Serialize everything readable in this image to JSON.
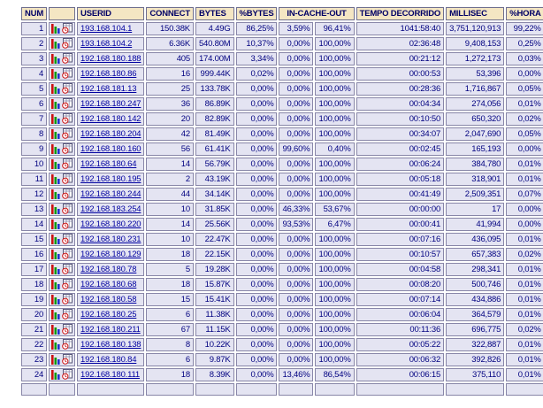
{
  "colors": {
    "header_bg": "#f4e6c3",
    "header_text": "#000066",
    "header_border": "#6f6f8f",
    "cell_bg": "#e4e4f2",
    "cell_text": "#000080",
    "cell_border": "#8886a8",
    "link_color": "#0000a0",
    "page_bg": "#ffffff"
  },
  "table": {
    "columns": [
      {
        "key": "num",
        "label": "NUM"
      },
      {
        "key": "icons",
        "label": ""
      },
      {
        "key": "userid",
        "label": "USERID"
      },
      {
        "key": "connect",
        "label": "CONNECT"
      },
      {
        "key": "bytes",
        "label": "BYTES"
      },
      {
        "key": "pbytes",
        "label": "%BYTES"
      },
      {
        "key": "in_cache_out",
        "label": "IN-CACHE-OUT",
        "colspan": 2
      },
      {
        "key": "tempo",
        "label": "TEMPO DECORRIDO"
      },
      {
        "key": "millisec",
        "label": "MILLISEC"
      },
      {
        "key": "phora",
        "label": "%HORA"
      }
    ],
    "row_icons": [
      "bar-graph-icon",
      "datetime-icon"
    ],
    "partial_row_visible": true,
    "rows": [
      {
        "num": "1",
        "userid": "193.168.104.1",
        "connect": "150.38K",
        "bytes": "4.49G",
        "pbytes": "86,25%",
        "incache": "3,59%",
        "outcache": "96,41%",
        "tempo": "1041:58:40",
        "millisec": "3,751,120,913",
        "phora": "99,22%"
      },
      {
        "num": "2",
        "userid": "193.168.104.2",
        "connect": "6.36K",
        "bytes": "540.80M",
        "pbytes": "10,37%",
        "incache": "0,00%",
        "outcache": "100,00%",
        "tempo": "02:36:48",
        "millisec": "9,408,153",
        "phora": "0,25%"
      },
      {
        "num": "3",
        "userid": "192.168.180.188",
        "connect": "405",
        "bytes": "174.00M",
        "pbytes": "3,34%",
        "incache": "0,00%",
        "outcache": "100,00%",
        "tempo": "00:21:12",
        "millisec": "1,272,173",
        "phora": "0,03%"
      },
      {
        "num": "4",
        "userid": "192.168.180.86",
        "connect": "16",
        "bytes": "999.44K",
        "pbytes": "0,02%",
        "incache": "0,00%",
        "outcache": "100,00%",
        "tempo": "00:00:53",
        "millisec": "53,396",
        "phora": "0,00%"
      },
      {
        "num": "5",
        "userid": "192.168.181.13",
        "connect": "25",
        "bytes": "133.78K",
        "pbytes": "0,00%",
        "incache": "0,00%",
        "outcache": "100,00%",
        "tempo": "00:28:36",
        "millisec": "1,716,867",
        "phora": "0,05%"
      },
      {
        "num": "6",
        "userid": "192.168.180.247",
        "connect": "36",
        "bytes": "86.89K",
        "pbytes": "0,00%",
        "incache": "0,00%",
        "outcache": "100,00%",
        "tempo": "00:04:34",
        "millisec": "274,056",
        "phora": "0,01%"
      },
      {
        "num": "7",
        "userid": "192.168.180.142",
        "connect": "20",
        "bytes": "82.89K",
        "pbytes": "0,00%",
        "incache": "0,00%",
        "outcache": "100,00%",
        "tempo": "00:10:50",
        "millisec": "650,320",
        "phora": "0,02%"
      },
      {
        "num": "8",
        "userid": "192.168.180.204",
        "connect": "42",
        "bytes": "81.49K",
        "pbytes": "0,00%",
        "incache": "0,00%",
        "outcache": "100,00%",
        "tempo": "00:34:07",
        "millisec": "2,047,690",
        "phora": "0,05%"
      },
      {
        "num": "9",
        "userid": "192.168.180.160",
        "connect": "56",
        "bytes": "61.41K",
        "pbytes": "0,00%",
        "incache": "99,60%",
        "outcache": "0,40%",
        "tempo": "00:02:45",
        "millisec": "165,193",
        "phora": "0,00%"
      },
      {
        "num": "10",
        "userid": "192.168.180.64",
        "connect": "14",
        "bytes": "56.79K",
        "pbytes": "0,00%",
        "incache": "0,00%",
        "outcache": "100,00%",
        "tempo": "00:06:24",
        "millisec": "384,780",
        "phora": "0,01%"
      },
      {
        "num": "11",
        "userid": "192.168.180.195",
        "connect": "2",
        "bytes": "43.19K",
        "pbytes": "0,00%",
        "incache": "0,00%",
        "outcache": "100,00%",
        "tempo": "00:05:18",
        "millisec": "318,901",
        "phora": "0,01%"
      },
      {
        "num": "12",
        "userid": "192.168.180.244",
        "connect": "44",
        "bytes": "34.14K",
        "pbytes": "0,00%",
        "incache": "0,00%",
        "outcache": "100,00%",
        "tempo": "00:41:49",
        "millisec": "2,509,351",
        "phora": "0,07%"
      },
      {
        "num": "13",
        "userid": "192.168.183.254",
        "connect": "10",
        "bytes": "31.85K",
        "pbytes": "0,00%",
        "incache": "46,33%",
        "outcache": "53,67%",
        "tempo": "00:00:00",
        "millisec": "17",
        "phora": "0,00%"
      },
      {
        "num": "14",
        "userid": "192.168.180.220",
        "connect": "14",
        "bytes": "25.56K",
        "pbytes": "0,00%",
        "incache": "93,53%",
        "outcache": "6,47%",
        "tempo": "00:00:41",
        "millisec": "41,994",
        "phora": "0,00%"
      },
      {
        "num": "15",
        "userid": "192.168.180.231",
        "connect": "10",
        "bytes": "22.47K",
        "pbytes": "0,00%",
        "incache": "0,00%",
        "outcache": "100,00%",
        "tempo": "00:07:16",
        "millisec": "436,095",
        "phora": "0,01%"
      },
      {
        "num": "16",
        "userid": "192.168.180.129",
        "connect": "18",
        "bytes": "22.15K",
        "pbytes": "0,00%",
        "incache": "0,00%",
        "outcache": "100,00%",
        "tempo": "00:10:57",
        "millisec": "657,383",
        "phora": "0,02%"
      },
      {
        "num": "17",
        "userid": "192.168.180.78",
        "connect": "5",
        "bytes": "19.28K",
        "pbytes": "0,00%",
        "incache": "0,00%",
        "outcache": "100,00%",
        "tempo": "00:04:58",
        "millisec": "298,341",
        "phora": "0,01%"
      },
      {
        "num": "18",
        "userid": "192.168.180.68",
        "connect": "18",
        "bytes": "15.87K",
        "pbytes": "0,00%",
        "incache": "0,00%",
        "outcache": "100,00%",
        "tempo": "00:08:20",
        "millisec": "500,746",
        "phora": "0,01%"
      },
      {
        "num": "19",
        "userid": "192.168.180.58",
        "connect": "15",
        "bytes": "15.41K",
        "pbytes": "0,00%",
        "incache": "0,00%",
        "outcache": "100,00%",
        "tempo": "00:07:14",
        "millisec": "434,886",
        "phora": "0,01%"
      },
      {
        "num": "20",
        "userid": "192.168.180.25",
        "connect": "6",
        "bytes": "11.38K",
        "pbytes": "0,00%",
        "incache": "0,00%",
        "outcache": "100,00%",
        "tempo": "00:06:04",
        "millisec": "364,579",
        "phora": "0,01%"
      },
      {
        "num": "21",
        "userid": "192.168.180.211",
        "connect": "67",
        "bytes": "11.15K",
        "pbytes": "0,00%",
        "incache": "0,00%",
        "outcache": "100,00%",
        "tempo": "00:11:36",
        "millisec": "696,775",
        "phora": "0,02%"
      },
      {
        "num": "22",
        "userid": "192.168.180.138",
        "connect": "8",
        "bytes": "10.22K",
        "pbytes": "0,00%",
        "incache": "0,00%",
        "outcache": "100,00%",
        "tempo": "00:05:22",
        "millisec": "322,887",
        "phora": "0,01%"
      },
      {
        "num": "23",
        "userid": "192.168.180.84",
        "connect": "6",
        "bytes": "9.87K",
        "pbytes": "0,00%",
        "incache": "0,00%",
        "outcache": "100,00%",
        "tempo": "00:06:32",
        "millisec": "392,826",
        "phora": "0,01%"
      },
      {
        "num": "24",
        "userid": "192.168.180.111",
        "connect": "18",
        "bytes": "8.39K",
        "pbytes": "0,00%",
        "incache": "13,46%",
        "outcache": "86,54%",
        "tempo": "00:06:15",
        "millisec": "375,110",
        "phora": "0,01%"
      }
    ]
  }
}
